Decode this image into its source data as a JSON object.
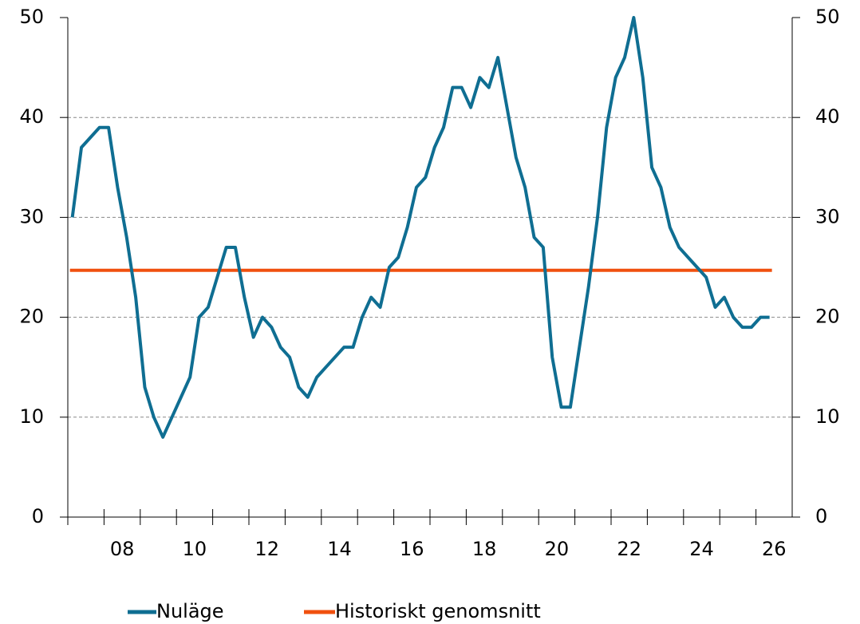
{
  "chart_data": {
    "type": "line",
    "categories": [
      null,
      null,
      null,
      null,
      null,
      "08",
      null,
      null,
      null,
      null,
      null,
      null,
      null,
      "10",
      null,
      null,
      null,
      null,
      null,
      null,
      null,
      "12",
      null,
      null,
      null,
      null,
      null,
      null,
      null,
      "14",
      null,
      null,
      null,
      null,
      null,
      null,
      null,
      "16",
      null,
      null,
      null,
      null,
      null,
      null,
      null,
      "18",
      null,
      null,
      null,
      null,
      null,
      null,
      null,
      "20",
      null,
      null,
      null,
      null,
      null,
      null,
      null,
      "22",
      null,
      null,
      null,
      null,
      null,
      null,
      null,
      "24",
      null,
      null,
      null,
      null,
      null,
      null,
      null,
      "26"
    ],
    "series": [
      {
        "name": "Nuläge",
        "color": "#0f6e92",
        "values": [
          30,
          37,
          38,
          39,
          39,
          33,
          28,
          22,
          13,
          10,
          8,
          10,
          12,
          14,
          20,
          21,
          24,
          27,
          27,
          22,
          18,
          20,
          19,
          17,
          16,
          13,
          12,
          14,
          15,
          16,
          17,
          17,
          20,
          22,
          21,
          25,
          26,
          29,
          33,
          34,
          37,
          39,
          43,
          43,
          41,
          44,
          43,
          46,
          41,
          36,
          33,
          28,
          27,
          16,
          11,
          11,
          17,
          23,
          30,
          39,
          44,
          46,
          50,
          44,
          35,
          33,
          29,
          27,
          26,
          25,
          24,
          21,
          22,
          20,
          19,
          19,
          20,
          20
        ]
      }
    ],
    "average": {
      "name": "Historiskt genomsnitt",
      "color": "#f0500f",
      "value": 24.7
    },
    "ylim": [
      0,
      50
    ],
    "yticks": [
      0,
      10,
      20,
      30,
      40,
      50
    ],
    "y2lim": [
      0,
      50
    ],
    "y2ticks": [
      0,
      10,
      20,
      30,
      40,
      50
    ],
    "grid": true
  }
}
